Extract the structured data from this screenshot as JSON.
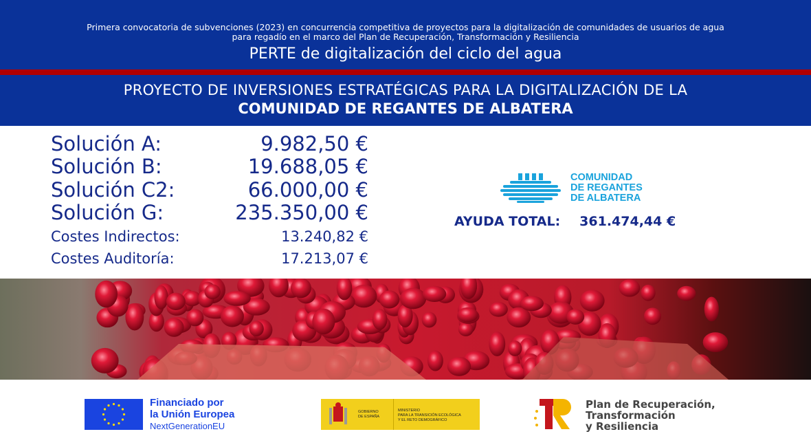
{
  "header": {
    "subtitle_line1": "Primera convocatoria de subvenciones (2023) en concurrencia competitiva de proyectos para la digitalización de comunidades de usuarios de agua",
    "subtitle_line2": "para regadío en el marco del Plan de Recuperación, Transformación y Resiliencia",
    "perte": "PERTE de digitalización del ciclo del agua"
  },
  "project": {
    "line1": "PROYECTO DE INVERSIONES ESTRATÉGICAS PARA LA DIGITALIZACIÓN DE LA",
    "line2": "COMUNIDAD DE REGANTES DE ALBATERA"
  },
  "costs": [
    {
      "label": "Solución A:",
      "value": "9.982,50 €"
    },
    {
      "label": "Solución B:",
      "value": "19.688,05 €"
    },
    {
      "label": "Solución C2:",
      "value": "66.000,00 €"
    },
    {
      "label": "Solución G:",
      "value": "235.350,00 €"
    },
    {
      "label": "Costes Indirectos:",
      "value": "13.240,82 €"
    },
    {
      "label": "Costes Auditoría:",
      "value": "17.213,07 €"
    }
  ],
  "logo": {
    "line1": "COMUNIDAD",
    "line2": "DE REGANTES",
    "line3": "DE ALBATERA",
    "color": "#1aa3dc"
  },
  "total": {
    "label": "AYUDA TOTAL:",
    "value": "361.474,44 €"
  },
  "footer": {
    "eu": {
      "line1": "Financiado por",
      "line2": "la Unión Europea",
      "line3": "NextGenerationEU"
    },
    "gobierno": {
      "left1": "GOBIERNO",
      "left2": "DE ESPAÑA",
      "right1": "MINISTERIO",
      "right2": "PARA LA TRANSICIÓN ECOLÓGICA",
      "right3": "Y EL RETO DEMOGRÁFICO"
    },
    "prtr": {
      "line1": "Plan de Recuperación,",
      "line2": "Transformación",
      "line3": "y Resiliencia"
    }
  },
  "colors": {
    "header_blue": "#0a3299",
    "stripe_red": "#b00000",
    "text_blue": "#162a8a"
  }
}
